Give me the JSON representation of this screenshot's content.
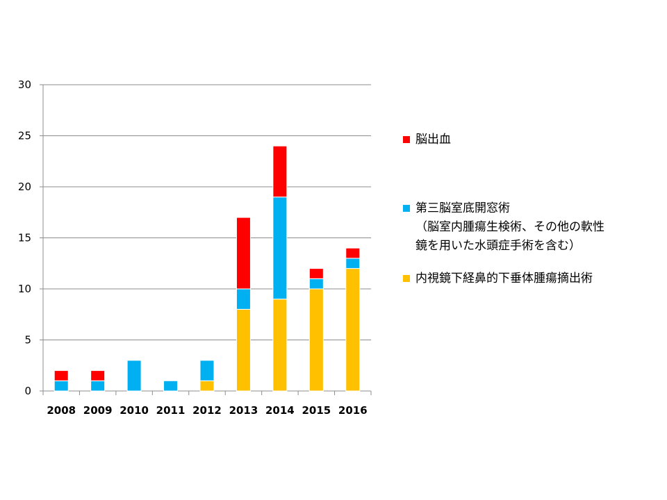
{
  "chart_data": {
    "type": "bar",
    "stacked": true,
    "categories": [
      "2008",
      "2009",
      "2010",
      "2011",
      "2012",
      "2013",
      "2014",
      "2015",
      "2016"
    ],
    "series": [
      {
        "name": "内視鏡下経鼻的下垂体腫瘍摘出術",
        "color": "#FFC000",
        "values": [
          0,
          0,
          0,
          0,
          1,
          8,
          9,
          10,
          12
        ]
      },
      {
        "name": "第三脳室底開窓術（脳室内腫瘍生検術、その他の軟性鏡を用いた水頭症手術を含む）",
        "color": "#00B0F0",
        "values": [
          1,
          1,
          3,
          1,
          2,
          2,
          10,
          1,
          1
        ]
      },
      {
        "name": "脳出血",
        "color": "#FF0000",
        "values": [
          1,
          1,
          0,
          0,
          0,
          7,
          5,
          1,
          1
        ]
      }
    ],
    "ylim": [
      0,
      30
    ],
    "yticks": [
      "0",
      "5",
      "10",
      "15",
      "20",
      "25",
      "30"
    ],
    "grid": true,
    "legend_position": "right",
    "title": "",
    "xlabel": "",
    "ylabel": ""
  },
  "legend": {
    "items": [
      {
        "color": "#FF0000",
        "lines": [
          "脳出血"
        ]
      },
      {
        "color": "#00B0F0",
        "lines": [
          "第三脳室底開窓術",
          "（脳室内腫瘍生検術、その他の軟性",
          "鏡を用いた水頭症手術を含む）"
        ]
      },
      {
        "color": "#FFC000",
        "lines": [
          "内視鏡下経鼻的下垂体腫瘍摘出術"
        ]
      }
    ]
  }
}
